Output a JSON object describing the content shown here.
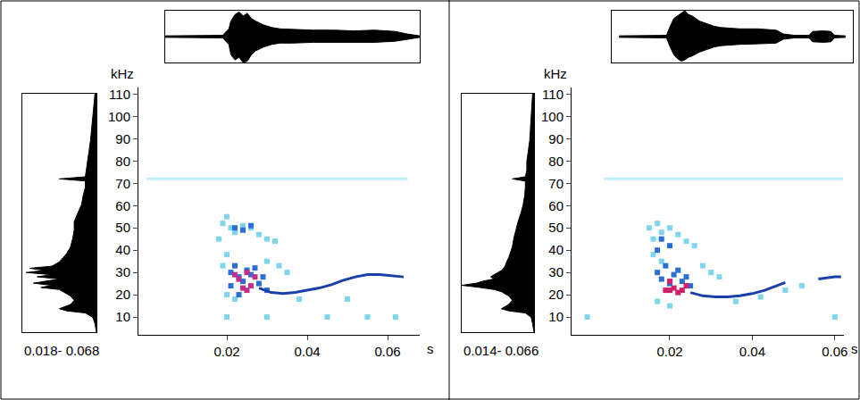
{
  "chart_data": [
    {
      "type": "spectrogram",
      "xlabel": "s",
      "ylabel": "kHz",
      "xlim": [
        -0.002,
        0.068
      ],
      "ylim": [
        2,
        113
      ],
      "xticks": [
        0.02,
        0.04,
        0.06
      ],
      "yticks": [
        10,
        20,
        30,
        40,
        50,
        60,
        70,
        80,
        90,
        100,
        110
      ],
      "grid": false,
      "series": [
        {
          "type": "line",
          "color": "#bfeef8",
          "x": [
            0.0,
            0.065
          ],
          "values": [
            72,
            72
          ]
        },
        {
          "type": "scatter",
          "marker": "square",
          "color": "#7fd6ec",
          "x": [
            0.018,
            0.019,
            0.02,
            0.021,
            0.022,
            0.024,
            0.026,
            0.028,
            0.03,
            0.032,
            0.02,
            0.019,
            0.02,
            0.022,
            0.03,
            0.033,
            0.035,
            0.02,
            0.03,
            0.045,
            0.055,
            0.062,
            0.038,
            0.05
          ],
          "values": [
            45,
            52,
            55,
            50,
            48,
            51,
            50,
            47,
            45,
            44,
            38,
            33,
            20,
            18,
            35,
            33,
            30,
            10,
            10,
            10,
            10,
            10,
            18,
            18
          ]
        },
        {
          "type": "scatter",
          "marker": "square",
          "color": "#2a6fd6",
          "x": [
            0.021,
            0.022,
            0.023,
            0.024,
            0.025,
            0.026,
            0.027,
            0.028,
            0.029,
            0.03,
            0.022,
            0.024,
            0.026,
            0.021,
            0.023
          ],
          "values": [
            30,
            33,
            28,
            26,
            31,
            29,
            32,
            25,
            28,
            22,
            50,
            49,
            51,
            24,
            20
          ]
        },
        {
          "type": "scatter",
          "marker": "square",
          "color": "#c0308a",
          "x": [
            0.022,
            0.023,
            0.024,
            0.025,
            0.026,
            0.027,
            0.025
          ],
          "values": [
            29,
            27,
            23,
            22,
            24,
            28,
            30
          ]
        },
        {
          "type": "line",
          "color": "#1a3fa8",
          "x": [
            0.028,
            0.031,
            0.034,
            0.037,
            0.04,
            0.043,
            0.046,
            0.049,
            0.052,
            0.055,
            0.058,
            0.061,
            0.064
          ],
          "values": [
            23,
            21,
            20.5,
            21,
            22,
            23,
            24.5,
            26.5,
            28,
            29,
            29,
            28.5,
            28
          ]
        }
      ],
      "spectrum": {
        "type": "area",
        "caption": "0.018- 0.068",
        "color": "#000000",
        "xlim": [
          1,
          0
        ],
        "ylim": [
          0,
          112
        ],
        "tick_labels": false,
        "freq": [
          112,
          105,
          100,
          95,
          90,
          85,
          80,
          76,
          73,
          72,
          71,
          68,
          64,
          60,
          56,
          52,
          48,
          44,
          40,
          37,
          35,
          33,
          31,
          30,
          29,
          28,
          27,
          26,
          25,
          24,
          23,
          22,
          21,
          20,
          19,
          17,
          15,
          13,
          11,
          10,
          9,
          7,
          4,
          0
        ],
        "values": [
          0.02,
          0.04,
          0.05,
          0.06,
          0.08,
          0.1,
          0.12,
          0.13,
          0.15,
          0.5,
          0.15,
          0.15,
          0.18,
          0.2,
          0.25,
          0.3,
          0.3,
          0.32,
          0.35,
          0.4,
          0.45,
          0.5,
          0.6,
          0.9,
          0.7,
          0.95,
          0.6,
          0.8,
          0.5,
          0.7,
          0.85,
          0.6,
          0.75,
          0.5,
          0.45,
          0.35,
          0.3,
          0.35,
          0.5,
          0.4,
          0.15,
          0.05,
          0.02,
          0
        ]
      },
      "waveform": {
        "type": "area",
        "color": "#000000",
        "xlim": [
          0.004,
          0.066
        ],
        "ylim": [
          -1,
          1
        ],
        "tick_labels": false,
        "x": [
          0.004,
          0.01,
          0.018,
          0.0195,
          0.02,
          0.021,
          0.022,
          0.023,
          0.024,
          0.025,
          0.026,
          0.028,
          0.03,
          0.032,
          0.035,
          0.04,
          0.045,
          0.05,
          0.055,
          0.06,
          0.063,
          0.065,
          0.066
        ],
        "upper": [
          0.03,
          0.03,
          0.05,
          0.3,
          0.6,
          0.85,
          0.95,
          0.8,
          0.9,
          0.7,
          0.6,
          0.45,
          0.35,
          0.3,
          0.28,
          0.25,
          0.25,
          0.22,
          0.25,
          0.2,
          0.1,
          0.04,
          0.03
        ],
        "lower": [
          -0.03,
          -0.03,
          -0.05,
          -0.3,
          -0.7,
          -0.9,
          -0.8,
          -1,
          -0.95,
          -0.7,
          -0.55,
          -0.4,
          -0.3,
          -0.25,
          -0.25,
          -0.22,
          -0.22,
          -0.2,
          -0.22,
          -0.18,
          -0.1,
          -0.04,
          -0.03
        ]
      }
    },
    {
      "type": "spectrogram",
      "xlabel": "s",
      "ylabel": "kHz",
      "xlim": [
        -0.0038,
        0.0622
      ],
      "ylim": [
        2,
        113
      ],
      "xticks": [
        0.02,
        0.04,
        0.06
      ],
      "yticks": [
        10,
        20,
        30,
        40,
        50,
        60,
        70,
        80,
        90,
        100,
        110
      ],
      "grid": false,
      "series": [
        {
          "type": "line",
          "color": "#bfeef8",
          "x": [
            0.004,
            0.062
          ],
          "values": [
            72,
            72
          ]
        },
        {
          "type": "scatter",
          "marker": "square",
          "color": "#7fd6ec",
          "x": [
            0.015,
            0.016,
            0.017,
            0.018,
            0.02,
            0.022,
            0.024,
            0.026,
            0.016,
            0.018,
            0.017,
            0.02,
            0.03,
            0.028,
            0.032,
            0.036,
            0.042,
            0.0,
            0.06,
            0.052,
            0.048
          ],
          "values": [
            50,
            45,
            52,
            48,
            50,
            47,
            44,
            42,
            38,
            35,
            17,
            15,
            30,
            33,
            28,
            17,
            19,
            10,
            10,
            24,
            22
          ]
        },
        {
          "type": "scatter",
          "marker": "square",
          "color": "#2a6fd6",
          "x": [
            0.017,
            0.018,
            0.019,
            0.02,
            0.021,
            0.022,
            0.023,
            0.024,
            0.018,
            0.02,
            0.017,
            0.025
          ],
          "values": [
            30,
            27,
            33,
            25,
            29,
            31,
            26,
            28,
            45,
            42,
            40,
            24
          ]
        },
        {
          "type": "scatter",
          "marker": "square",
          "color": "#d0206a",
          "x": [
            0.019,
            0.02,
            0.021,
            0.022,
            0.023,
            0.024,
            0.02
          ],
          "values": [
            22,
            22,
            23,
            21,
            22,
            24,
            26
          ]
        },
        {
          "type": "line",
          "color": "#1a3fa8",
          "x": [
            0.025,
            0.028,
            0.031,
            0.034,
            0.037,
            0.04,
            0.043,
            0.046,
            0.048
          ],
          "values": [
            21,
            19.5,
            19,
            19,
            19.5,
            20.5,
            22,
            24,
            25.5
          ]
        },
        {
          "type": "line",
          "color": "#1a3fa8",
          "x": [
            0.056,
            0.058,
            0.06,
            0.0615
          ],
          "values": [
            27,
            27.5,
            28,
            28
          ]
        }
      ],
      "spectrum": {
        "type": "area",
        "caption": "0.014- 0.066",
        "color": "#000000",
        "xlim": [
          1,
          0
        ],
        "ylim": [
          0,
          112
        ],
        "tick_labels": false,
        "freq": [
          112,
          105,
          100,
          95,
          90,
          85,
          80,
          76,
          73,
          72,
          71,
          68,
          64,
          60,
          56,
          52,
          48,
          44,
          40,
          37,
          35,
          33,
          31,
          30,
          29,
          28,
          27,
          26,
          25,
          24,
          23,
          22,
          21,
          20,
          19,
          17,
          15,
          13,
          11,
          10,
          9,
          7,
          4,
          0
        ],
        "values": [
          0.02,
          0.03,
          0.04,
          0.05,
          0.06,
          0.08,
          0.1,
          0.1,
          0.12,
          0.3,
          0.12,
          0.12,
          0.13,
          0.15,
          0.18,
          0.22,
          0.25,
          0.28,
          0.3,
          0.33,
          0.35,
          0.38,
          0.4,
          0.42,
          0.45,
          0.5,
          0.55,
          0.6,
          0.55,
          0.7,
          0.8,
          1.0,
          0.75,
          0.55,
          0.45,
          0.35,
          0.3,
          0.35,
          0.45,
          0.35,
          0.12,
          0.04,
          0.02,
          0
        ]
      },
      "waveform": {
        "type": "area",
        "color": "#000000",
        "xlim": [
          0.0,
          0.066
        ],
        "ylim": [
          -1,
          1
        ],
        "tick_labels": false,
        "x": [
          0.002,
          0.01,
          0.015,
          0.016,
          0.017,
          0.018,
          0.019,
          0.02,
          0.021,
          0.022,
          0.024,
          0.026,
          0.028,
          0.03,
          0.035,
          0.04,
          0.045,
          0.047,
          0.05,
          0.054,
          0.055,
          0.058,
          0.06,
          0.061,
          0.064
        ],
        "upper": [
          0.03,
          0.03,
          0.05,
          0.4,
          0.7,
          0.8,
          0.9,
          1,
          0.85,
          0.8,
          0.6,
          0.5,
          0.4,
          0.35,
          0.3,
          0.3,
          0.25,
          0.1,
          0.05,
          0.05,
          0.2,
          0.22,
          0.2,
          0.05,
          0.03
        ],
        "lower": [
          -0.03,
          -0.03,
          -0.05,
          -0.4,
          -0.7,
          -0.85,
          -0.95,
          -0.9,
          -0.8,
          -0.75,
          -0.6,
          -0.5,
          -0.4,
          -0.35,
          -0.3,
          -0.28,
          -0.25,
          -0.1,
          -0.05,
          -0.05,
          -0.2,
          -0.22,
          -0.2,
          -0.05,
          -0.03
        ]
      }
    }
  ]
}
